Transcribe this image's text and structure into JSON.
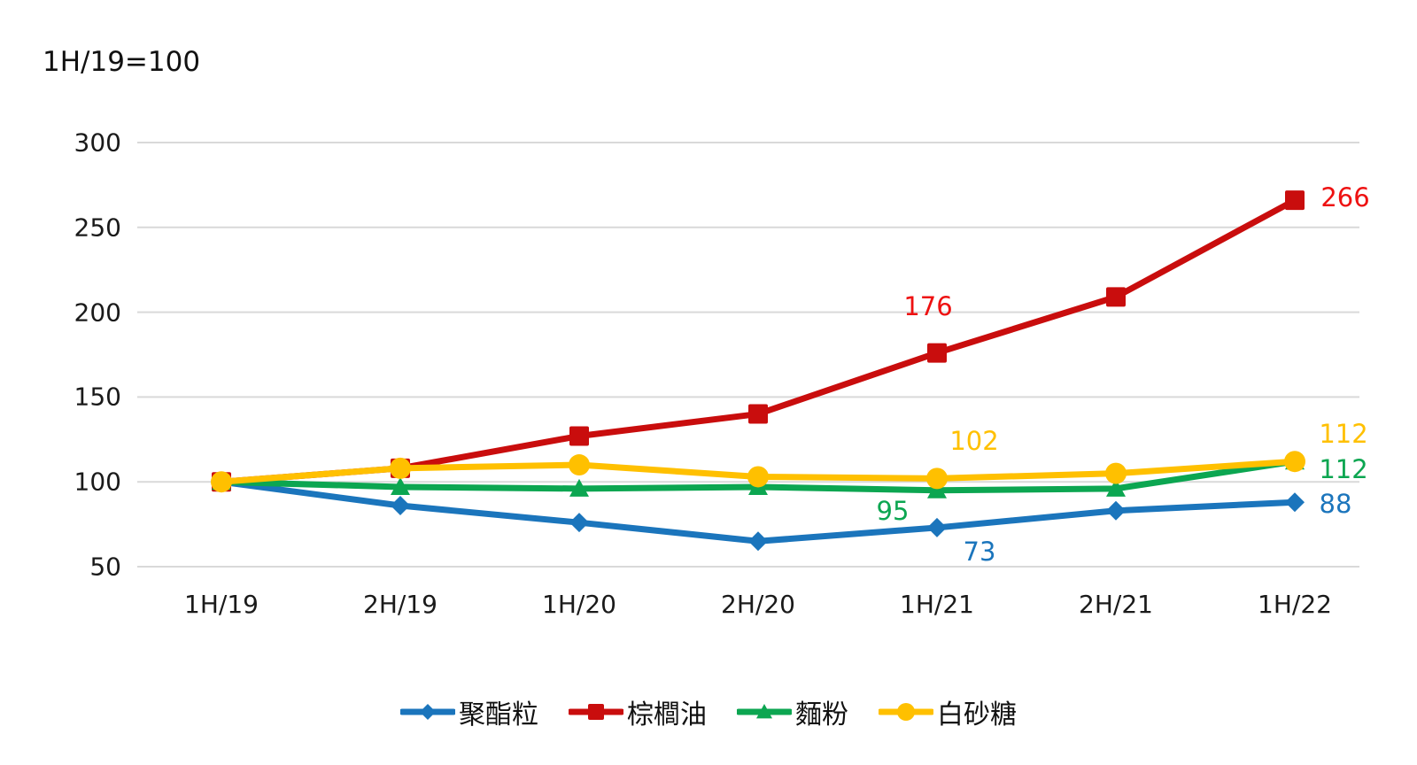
{
  "title": "1H/19=100",
  "chart_data": {
    "type": "line",
    "categories": [
      "1H/19",
      "2H/19",
      "1H/20",
      "2H/20",
      "1H/21",
      "2H/21",
      "1H/22"
    ],
    "series": [
      {
        "name": "聚酯粒",
        "color": "#1B75BC",
        "marker": "diamond",
        "values": [
          100,
          86,
          76,
          65,
          73,
          83,
          88
        ],
        "labels": [
          {
            "index": 4,
            "text": "73",
            "dx": 48,
            "dy": 27
          },
          {
            "index": 6,
            "text": "88",
            "dx": 46,
            "dy": 2
          }
        ]
      },
      {
        "name": "棕櫚油",
        "color": "#C90D0D",
        "label_color": "#EE1111",
        "marker": "square",
        "values": [
          100,
          108,
          127,
          140,
          176,
          209,
          266
        ],
        "labels": [
          {
            "index": 4,
            "text": "176",
            "dx": -10,
            "dy": -53
          },
          {
            "index": 6,
            "text": "266",
            "dx": 57,
            "dy": -3
          }
        ]
      },
      {
        "name": "麵粉",
        "color": "#0CA651",
        "marker": "triangle",
        "values": [
          100,
          97,
          96,
          97,
          95,
          96,
          112
        ],
        "labels": [
          {
            "index": 4,
            "text": "95",
            "dx": -50,
            "dy": 23
          },
          {
            "index": 6,
            "text": "112",
            "dx": 55,
            "dy": 9
          }
        ]
      },
      {
        "name": "白砂糖",
        "color": "#FFC000",
        "marker": "circle",
        "values": [
          100,
          108,
          110,
          103,
          102,
          105,
          112
        ],
        "labels": [
          {
            "index": 4,
            "text": "102",
            "dx": 42,
            "dy": -42
          },
          {
            "index": 6,
            "text": "112",
            "dx": 55,
            "dy": -31
          }
        ]
      }
    ],
    "ylabel": "",
    "xlabel": "",
    "yticks": [
      50,
      100,
      150,
      200,
      250,
      300
    ],
    "ylim": [
      50,
      300
    ],
    "grid": "horizontal",
    "gridline_color": "#D9D9D9",
    "legend_position": "bottom"
  }
}
